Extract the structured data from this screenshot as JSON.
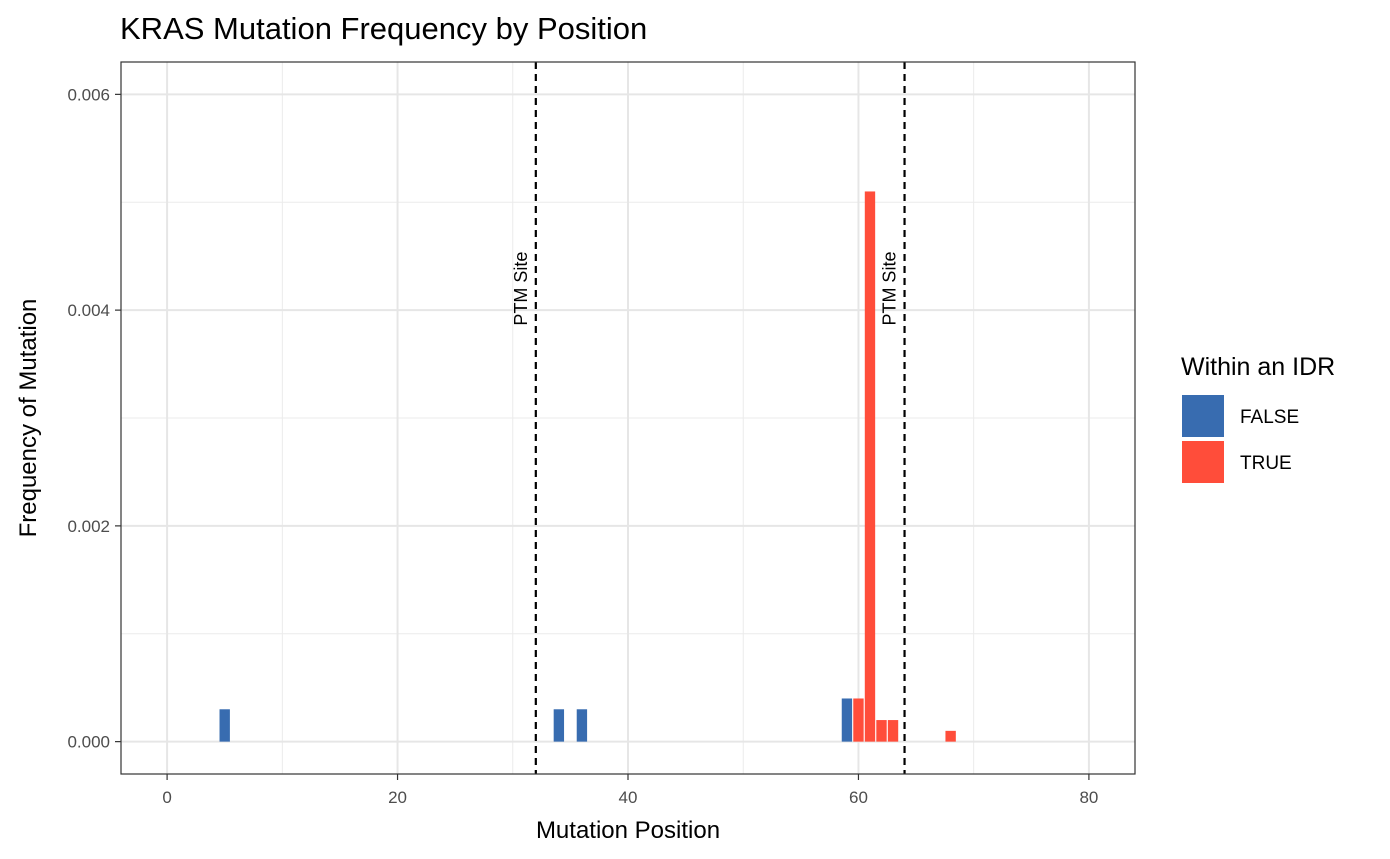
{
  "chart_data": {
    "type": "bar",
    "title": "KRAS Mutation Frequency by Position",
    "xlabel": "Mutation Position",
    "ylabel": "Frequency of Mutation",
    "xlim": [
      -4,
      84
    ],
    "ylim": [
      -0.0003,
      0.0063
    ],
    "xticks": [
      0,
      20,
      40,
      60,
      80
    ],
    "xtick_labels": [
      "0",
      "20",
      "40",
      "60",
      "80"
    ],
    "yticks": [
      0,
      0.002,
      0.004,
      0.006
    ],
    "ytick_labels": [
      "0.000",
      "0.002",
      "0.004",
      "0.006"
    ],
    "grid": true,
    "legend": {
      "title": "Within an IDR",
      "position": "right",
      "entries": [
        {
          "label": "FALSE",
          "color": "#386CB0"
        },
        {
          "label": "TRUE",
          "color": "#FF4D3A"
        }
      ]
    },
    "series": [
      {
        "name": "FALSE",
        "color": "#386CB0",
        "x": [
          5,
          34,
          36,
          59
        ],
        "values": [
          0.0003,
          0.0003,
          0.0003,
          0.0004
        ]
      },
      {
        "name": "TRUE",
        "color": "#FF4D3A",
        "x": [
          60,
          61,
          62,
          63,
          68
        ],
        "values": [
          0.0004,
          0.0051,
          0.0002,
          0.0002,
          0.0001
        ]
      }
    ],
    "vlines": [
      {
        "x": 32,
        "label": "PTM Site",
        "style": "dashed"
      },
      {
        "x": 64,
        "label": "PTM Site",
        "style": "dashed"
      }
    ]
  }
}
